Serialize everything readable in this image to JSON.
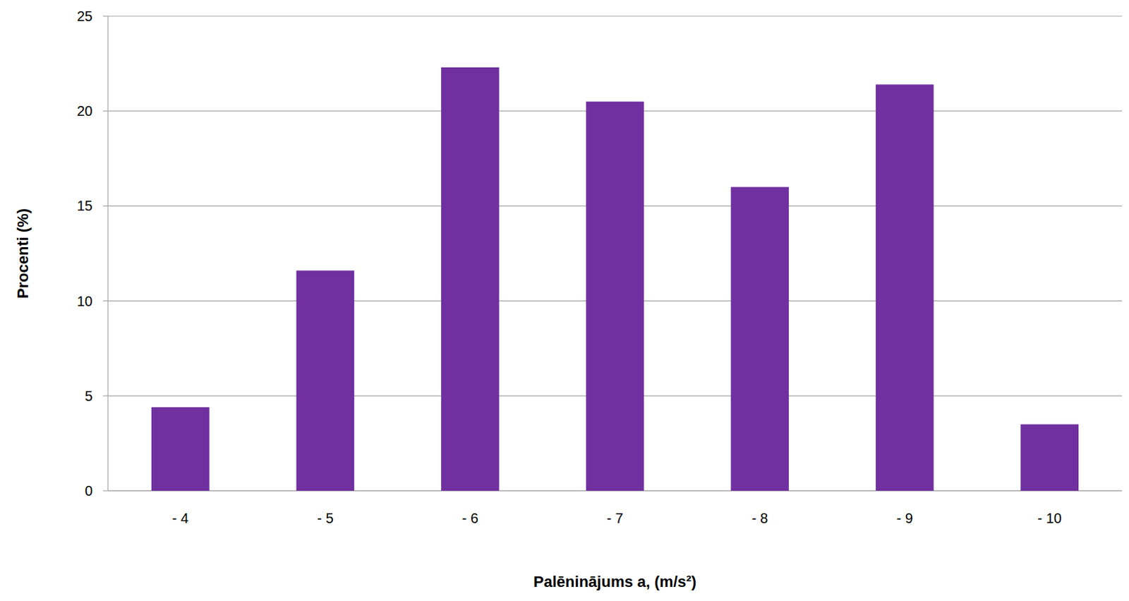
{
  "chart_data": {
    "type": "bar",
    "x_label": "Palēninājums a, (m/s²)",
    "y_label": "Procenti (%)",
    "categories": [
      "- 4",
      "- 5",
      "- 6",
      "- 7",
      "- 8",
      "- 9",
      "- 10"
    ],
    "values": [
      4.4,
      11.6,
      22.3,
      20.5,
      16.0,
      21.4,
      3.5
    ],
    "color": "#7030a0",
    "ylim": [
      0,
      25
    ],
    "yticks": [
      0,
      5,
      10,
      15,
      20,
      25
    ],
    "grid": true
  }
}
